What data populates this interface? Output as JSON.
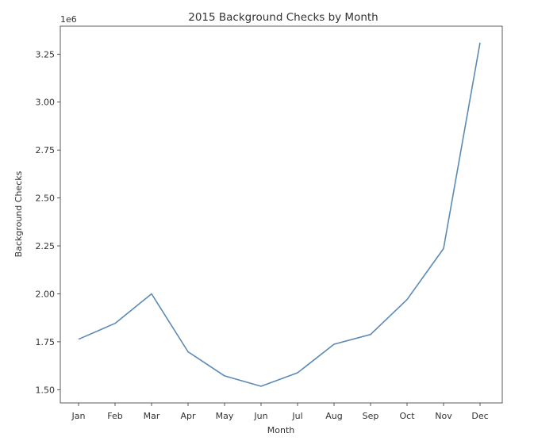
{
  "chart_data": {
    "type": "line",
    "title": "2015 Background Checks by Month",
    "xlabel": "Month",
    "ylabel": "Background Checks",
    "y_offset_label": "1e6",
    "categories": [
      "Jan",
      "Feb",
      "Mar",
      "Apr",
      "May",
      "Jun",
      "Jul",
      "Aug",
      "Sep",
      "Oct",
      "Nov",
      "Dec"
    ],
    "series": [
      {
        "values": [
          1763000,
          1846000,
          2000000,
          1698000,
          1572000,
          1518000,
          1588000,
          1737000,
          1788000,
          1970000,
          2236000,
          3310000
        ],
        "color": "#5b8ab5"
      }
    ],
    "y_ticks": [
      1.5,
      1.75,
      2.0,
      2.25,
      2.5,
      2.75,
      3.0,
      3.25
    ],
    "y_tick_labels": [
      "1.50",
      "1.75",
      "2.00",
      "2.25",
      "2.50",
      "2.75",
      "3.00",
      "3.25"
    ],
    "y_scale": 1000000,
    "ylim": [
      1.431,
      3.396
    ],
    "grid": false,
    "legend": false
  }
}
